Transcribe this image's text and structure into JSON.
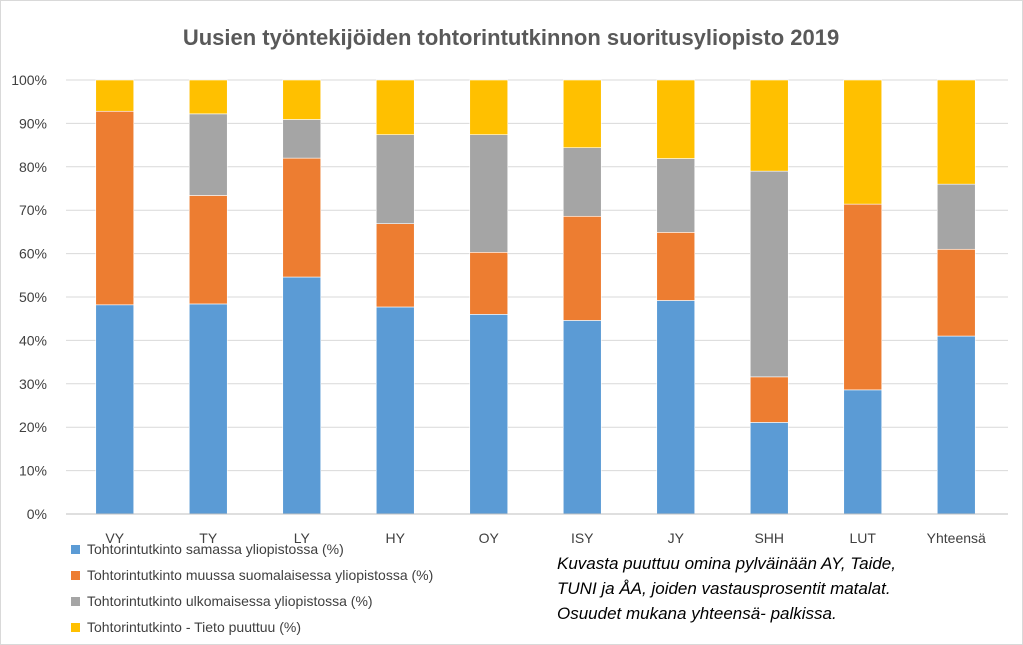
{
  "chart_data": {
    "type": "bar",
    "stacked": true,
    "title": "Uusien työntekijöiden tohtorintutkinnon suoritusyliopisto 2019",
    "xlabel": "",
    "ylabel": "",
    "ylim": [
      0,
      100
    ],
    "yticks": [
      "0%",
      "10%",
      "20%",
      "30%",
      "40%",
      "50%",
      "60%",
      "70%",
      "80%",
      "90%",
      "100%"
    ],
    "grid": true,
    "categories": [
      "VY",
      "TY",
      "LY",
      "HY",
      "OY",
      "ISY",
      "JY",
      "SHH",
      "LUT",
      "Yhteensä"
    ],
    "series": [
      {
        "name": "Tohtorintutkinto samassa yliopistossa (%)",
        "color": "#5b9bd5",
        "values": [
          48.2,
          48.4,
          54.6,
          47.7,
          46.0,
          44.6,
          49.2,
          21.1,
          28.6,
          41.0
        ]
      },
      {
        "name": "Tohtorintutkinto muussa suomalaisessa yliopistossa (%)",
        "color": "#ed7d31",
        "values": [
          44.6,
          25.0,
          27.4,
          19.2,
          14.3,
          24.0,
          15.7,
          10.5,
          42.8,
          20.0
        ]
      },
      {
        "name": "Tohtorintutkinto ulkomaisessa yliopistossa (%)",
        "color": "#a5a5a5",
        "values": [
          0.0,
          18.8,
          8.9,
          20.5,
          27.1,
          15.8,
          17.0,
          47.4,
          0.0,
          15.0
        ]
      },
      {
        "name": "Tohtorintutkinto - Tieto puuttuu (%)",
        "color": "#ffc000",
        "values": [
          7.2,
          7.8,
          9.1,
          12.6,
          12.6,
          15.6,
          18.1,
          21.0,
          28.6,
          24.0
        ]
      }
    ],
    "legend_position": "bottom-left",
    "annotation_lines": [
      "Kuvasta puuttuu omina pylväinään AY, Taide,",
      "TUNI ja ÅA, joiden vastausprosentit matalat.",
      "Osuudet mukana yhteensä- palkissa."
    ]
  }
}
